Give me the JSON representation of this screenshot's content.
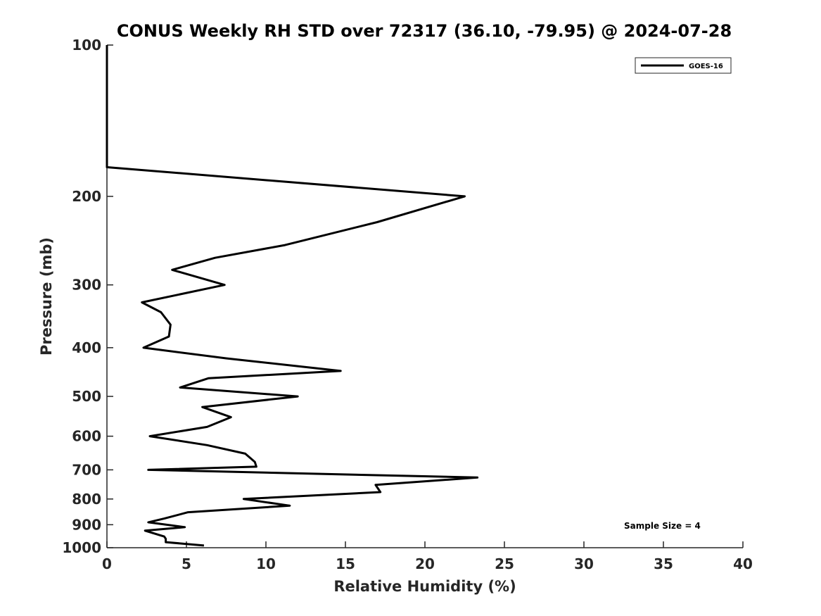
{
  "chart_data": {
    "type": "line",
    "title": "CONUS Weekly RH STD over 72317 (36.10, -79.95) @ 2024-07-28",
    "xlabel": "Relative Humidity (%)",
    "ylabel": "Pressure (mb)",
    "xlim": [
      0,
      40
    ],
    "ylim": [
      1000,
      100
    ],
    "yscale": "log",
    "y_reversed": true,
    "x_ticks": [
      0,
      5,
      10,
      15,
      20,
      25,
      30,
      35,
      40
    ],
    "y_ticks": [
      100,
      200,
      300,
      400,
      500,
      600,
      700,
      800,
      900,
      1000
    ],
    "grid": false,
    "legend_position": "top-right",
    "annotation": "Sample Size = 4",
    "series": [
      {
        "name": "GOES-16",
        "color": "#000000",
        "x": [
          0,
          0,
          0,
          0,
          22.5,
          17,
          11.2,
          6.8,
          4.1,
          7.4,
          2.2,
          3.4,
          4.0,
          3.9,
          2.3,
          7.5,
          14.7,
          6.4,
          4.6,
          12.0,
          6.0,
          7.8,
          6.3,
          2.7,
          6.3,
          8.7,
          9.3,
          9.4,
          2.6,
          23.3,
          16.9,
          17.2,
          8.6,
          11.5,
          5.1,
          3.6,
          2.6,
          4.9,
          2.4,
          3.6,
          3.7,
          3.7,
          6.1
        ],
        "y": [
          100,
          125,
          150,
          175,
          200,
          225,
          250,
          265,
          280,
          300,
          325,
          340,
          360,
          380,
          400,
          420,
          445,
          460,
          480,
          500,
          525,
          550,
          575,
          600,
          625,
          650,
          675,
          690,
          700,
          725,
          750,
          775,
          800,
          825,
          850,
          875,
          890,
          910,
          925,
          950,
          960,
          975,
          990
        ]
      }
    ]
  }
}
